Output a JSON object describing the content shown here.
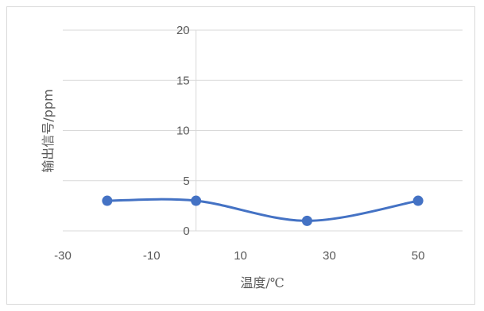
{
  "chart_data": {
    "type": "scatter",
    "title": "",
    "xlabel": "温度/℃",
    "ylabel": "输出信号/ppm",
    "xlim": [
      -30,
      60
    ],
    "ylim": [
      0,
      20
    ],
    "xticks": [
      -30,
      -10,
      10,
      30,
      50
    ],
    "yticks": [
      0,
      5,
      10,
      15,
      20
    ],
    "grid": true,
    "smooth": true,
    "series": [
      {
        "x": [
          -20,
          0,
          25,
          50
        ],
        "y": [
          3,
          3,
          1,
          3
        ],
        "color": "#4472c4"
      }
    ]
  }
}
